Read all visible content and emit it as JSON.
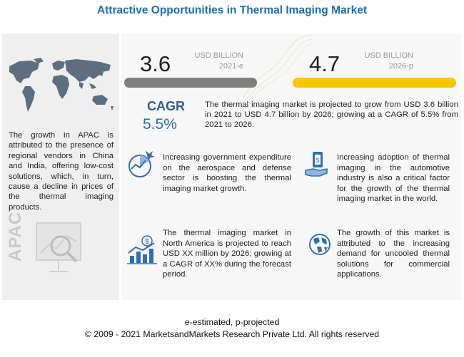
{
  "title": "Attractive Opportunities in Thermal Imaging Market",
  "apac": {
    "description": "The growth in APAC is attributed to the presence of regional vendors in China and India, offering low-cost solutions, which, in turn, cause a decline in prices of the thermal imaging products.",
    "label": "APAC"
  },
  "market": {
    "value_2021": "3.6",
    "unit_2021": "USD BILLION",
    "year_2021": "2021-e",
    "value_2026": "4.7",
    "unit_2026": "USD BILLION",
    "year_2026": "2026-p",
    "cagr_label": "CAGR",
    "cagr_value": "5.5%",
    "summary": "The thermal imaging market is projected to grow from USD 3.6 billion in 2021 to USD 4.7 billion by 2026; growing at a CAGR of 5.5% from 2021 to 2026."
  },
  "cards": {
    "defense": "Increasing government expenditure on the aerospace and defense sector is boosting the thermal imaging market growth.",
    "automotive": "Increasing adoption of thermal imaging in the automotive industry is also a critical factor for the growth of the thermal imaging market in the world.",
    "north_america": "The thermal imaging market in North America is projected to reach USD XX million by 2026; growing at a CAGR of XX% during the forecast period.",
    "uncooled": "The growth of this market is attributed to the increasing demand for uncooled thermal solutions for commercial applications."
  },
  "footer": {
    "legend": "e-estimated, p-projected",
    "copyright": "© 2009 - 2021 MarketsandMarkets Research Private Ltd. All rights reserved"
  },
  "colors": {
    "title": "#1a6fb4",
    "bar_2021": "#7f7f7f",
    "bar_2026": "#f6c600",
    "cagr": "#2a6db5",
    "icon_blue": "#2f6fb0"
  }
}
